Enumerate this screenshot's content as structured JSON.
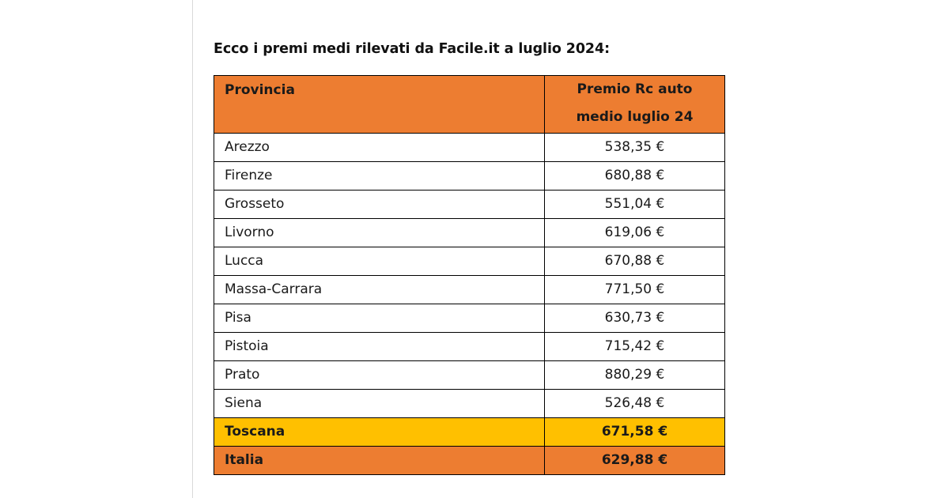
{
  "intro": "Ecco i premi medi rilevati da Facile.it a luglio 2024:",
  "table": {
    "header": {
      "col1": "Provincia",
      "col2_line1": "Premio Rc auto",
      "col2_line2": "medio luglio 24"
    },
    "rows": [
      {
        "provincia": "Arezzo",
        "premio": "538,35 €"
      },
      {
        "provincia": "Firenze",
        "premio": "680,88 €"
      },
      {
        "provincia": "Grosseto",
        "premio": "551,04 €"
      },
      {
        "provincia": "Livorno",
        "premio": "619,06 €"
      },
      {
        "provincia": "Lucca",
        "premio": "670,88 €"
      },
      {
        "provincia": "Massa-Carrara",
        "premio": "771,50 €"
      },
      {
        "provincia": "Pisa",
        "premio": "630,73 €"
      },
      {
        "provincia": "Pistoia",
        "premio": "715,42 €"
      },
      {
        "provincia": "Prato",
        "premio": "880,29 €"
      },
      {
        "provincia": "Siena",
        "premio": "526,48 €"
      }
    ],
    "toscana": {
      "label": "Toscana",
      "premio": "671,58 €"
    },
    "italia": {
      "label": "Italia",
      "premio": "629,88 €"
    }
  },
  "colors": {
    "header_bg": "#ed7d31",
    "toscana_bg": "#ffc000",
    "italia_bg": "#ed7d31"
  }
}
